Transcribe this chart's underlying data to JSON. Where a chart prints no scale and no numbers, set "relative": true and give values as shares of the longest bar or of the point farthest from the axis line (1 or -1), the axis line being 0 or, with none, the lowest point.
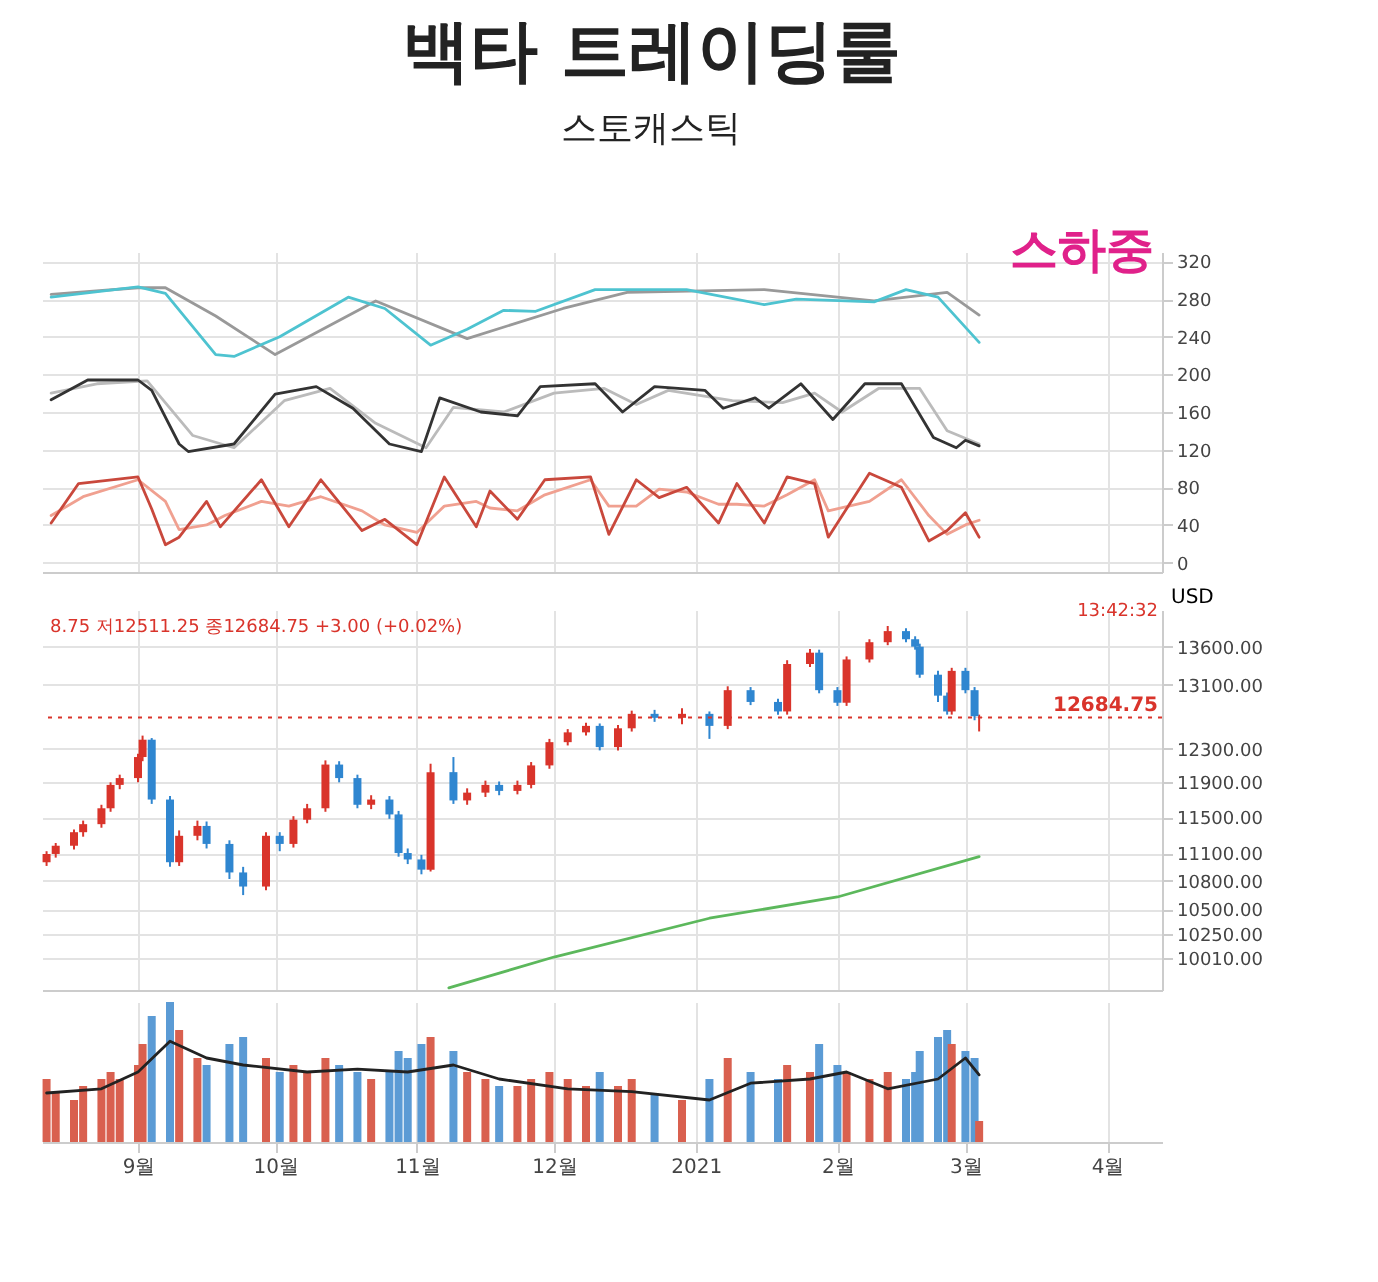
{
  "chart_data": [
    {
      "type": "line",
      "title": "백타 트레이딩룰",
      "subtitle": "스토캐스틱",
      "xlim": [
        "2020-08-11",
        "2021-04-13"
      ],
      "xticks": [
        {
          "value": "2020-09-01",
          "label": null
        },
        {
          "value": "2020-10-01",
          "label": null
        },
        {
          "value": "2020-11-01",
          "label": null
        },
        {
          "value": "2020-12-01",
          "label": null
        },
        {
          "value": "2021-01-01",
          "label": null
        },
        {
          "value": "2021-02-01",
          "label": null
        },
        {
          "value": "2021-03-01",
          "label": null
        },
        {
          "value": "2021-04-01",
          "label": null
        }
      ],
      "ylim": [
        -10,
        330
      ],
      "yticks": [
        0,
        40,
        80,
        120,
        160,
        200,
        240,
        280,
        320
      ],
      "tick_labels": "y",
      "grid": true,
      "annotations": [
        "스하중"
      ],
      "series": [
        {
          "color": "#999999",
          "x": [
            "2020-08-13",
            "2020-09-01",
            "2020-09-07",
            "2020-09-18",
            "2020-10-01",
            "2020-10-23",
            "2020-11-12",
            "2020-12-03",
            "2020-12-17",
            "2021-01-16",
            "2021-02-09",
            "2021-02-25",
            "2021-03-04"
          ],
          "values": [
            285,
            292,
            292,
            262,
            221,
            278,
            238,
            270,
            287,
            290,
            278,
            287,
            263
          ]
        },
        {
          "color": "#4ec3d0",
          "x": [
            "2020-08-13",
            "2020-09-01",
            "2020-09-07",
            "2020-09-18",
            "2020-09-22",
            "2020-10-02",
            "2020-10-17",
            "2020-10-25",
            "2020-11-04",
            "2020-11-12",
            "2020-11-20",
            "2020-11-27",
            "2020-12-10",
            "2020-12-30",
            "2021-01-16",
            "2021-01-23",
            "2021-02-09",
            "2021-02-16",
            "2021-02-23",
            "2021-03-04"
          ],
          "values": [
            282,
            293,
            286,
            221,
            219,
            240,
            282,
            270,
            231,
            248,
            268,
            267,
            290,
            290,
            274,
            280,
            277,
            290,
            282,
            234
          ]
        },
        {
          "color": "#bbbbbb",
          "x": [
            "2020-08-13",
            "2020-08-23",
            "2020-09-03",
            "2020-09-13",
            "2020-09-22",
            "2020-10-03",
            "2020-10-13",
            "2020-10-23",
            "2020-11-03",
            "2020-11-09",
            "2020-11-20",
            "2020-12-01",
            "2020-12-12",
            "2020-12-19",
            "2020-12-26",
            "2021-01-09",
            "2021-01-20",
            "2021-01-27",
            "2021-02-02",
            "2021-02-10",
            "2021-02-19",
            "2021-02-25",
            "2021-03-04"
          ],
          "values": [
            180,
            190,
            193,
            135,
            122,
            172,
            185,
            148,
            122,
            165,
            160,
            180,
            185,
            168,
            183,
            172,
            170,
            180,
            160,
            185,
            185,
            140,
            126
          ]
        },
        {
          "color": "#333333",
          "x": [
            "2020-08-13",
            "2020-08-21",
            "2020-09-01",
            "2020-09-04",
            "2020-09-10",
            "2020-09-12",
            "2020-09-22",
            "2020-10-01",
            "2020-10-10",
            "2020-10-18",
            "2020-10-26",
            "2020-11-02",
            "2020-11-06",
            "2020-11-15",
            "2020-11-23",
            "2020-11-28",
            "2020-12-10",
            "2020-12-16",
            "2020-12-23",
            "2021-01-03",
            "2021-01-07",
            "2021-01-14",
            "2021-01-17",
            "2021-01-24",
            "2021-01-31",
            "2021-02-07",
            "2021-02-15",
            "2021-02-22",
            "2021-02-27",
            "2021-03-01",
            "2021-03-04"
          ],
          "values": [
            173,
            194,
            194,
            183,
            126,
            118,
            126,
            179,
            187,
            164,
            126,
            118,
            175,
            160,
            156,
            187,
            190,
            160,
            187,
            183,
            164,
            175,
            164,
            190,
            152,
            190,
            190,
            133,
            122,
            130,
            124
          ]
        },
        {
          "color": "#f0a090",
          "x": [
            "2020-08-13",
            "2020-08-20",
            "2020-09-01",
            "2020-09-07",
            "2020-09-10",
            "2020-09-16",
            "2020-09-20",
            "2020-09-28",
            "2020-10-04",
            "2020-10-11",
            "2020-10-20",
            "2020-10-25",
            "2020-11-01",
            "2020-11-07",
            "2020-11-14",
            "2020-11-17",
            "2020-11-23",
            "2020-11-29",
            "2020-12-09",
            "2020-12-13",
            "2020-12-19",
            "2020-12-24",
            "2020-12-30",
            "2021-01-06",
            "2021-01-10",
            "2021-01-16",
            "2021-01-21",
            "2021-01-27",
            "2021-01-30",
            "2021-02-08",
            "2021-02-15",
            "2021-02-21",
            "2021-02-25",
            "2021-03-01",
            "2021-03-04"
          ],
          "values": [
            50,
            70,
            88,
            65,
            35,
            40,
            50,
            65,
            60,
            70,
            55,
            40,
            32,
            60,
            65,
            58,
            55,
            72,
            88,
            60,
            60,
            78,
            75,
            62,
            62,
            60,
            72,
            88,
            55,
            65,
            88,
            50,
            30,
            40,
            45
          ]
        },
        {
          "color": "#c9483c",
          "x": [
            "2020-08-13",
            "2020-08-19",
            "2020-09-01",
            "2020-09-04",
            "2020-09-07",
            "2020-09-10",
            "2020-09-16",
            "2020-09-19",
            "2020-09-28",
            "2020-10-04",
            "2020-10-11",
            "2020-10-20",
            "2020-10-25",
            "2020-11-01",
            "2020-11-07",
            "2020-11-14",
            "2020-11-17",
            "2020-11-23",
            "2020-11-29",
            "2020-12-09",
            "2020-12-13",
            "2020-12-19",
            "2020-12-24",
            "2020-12-30",
            "2021-01-06",
            "2021-01-10",
            "2021-01-16",
            "2021-01-21",
            "2021-01-27",
            "2021-01-30",
            "2021-02-08",
            "2021-02-15",
            "2021-02-21",
            "2021-02-25",
            "2021-03-01",
            "2021-03-04"
          ],
          "values": [
            42,
            84,
            91,
            57,
            19,
            27,
            65,
            38,
            88,
            38,
            88,
            34,
            46,
            19,
            91,
            38,
            76,
            46,
            88,
            91,
            30,
            88,
            69,
            80,
            42,
            84,
            42,
            91,
            84,
            27,
            95,
            80,
            23,
            34,
            53,
            27
          ]
        }
      ]
    },
    {
      "type": "candlestick",
      "ylabel": "USD",
      "log": true,
      "xlim": [
        "2020-08-11",
        "2021-04-13"
      ],
      "xticks": [
        {
          "value": "2020-09-01",
          "label": null
        },
        {
          "value": "2020-10-01",
          "label": null
        },
        {
          "value": "2020-11-01",
          "label": null
        },
        {
          "value": "2020-12-01",
          "label": null
        },
        {
          "value": "2021-01-01",
          "label": null
        },
        {
          "value": "2021-02-01",
          "label": null
        },
        {
          "value": "2021-03-01",
          "label": null
        },
        {
          "value": "2021-04-01",
          "label": null
        }
      ],
      "ylim": [
        9700,
        14100
      ],
      "yticks": [
        {
          "value": 10010,
          "label": "10010.00"
        },
        {
          "value": 10250,
          "label": "10250.00"
        },
        {
          "value": 10500,
          "label": "10500.00"
        },
        {
          "value": 10800,
          "label": "10800.00"
        },
        {
          "value": 11100,
          "label": "11100.00"
        },
        {
          "value": 11500,
          "label": "11500.00"
        },
        {
          "value": 11900,
          "label": "11900.00"
        },
        {
          "value": 12300,
          "label": "12300.00"
        },
        {
          "value": 13100,
          "label": "13100.00"
        },
        {
          "value": 13600,
          "label": "13600.00"
        }
      ],
      "tick_labels": "y",
      "grid": true,
      "annotations": [
        "8.75 저12511.25 종12684.75 +3.00 (+0.02%)",
        "13:42:32"
      ],
      "ref_lines": [
        {
          "axis": "y",
          "value": 12684.75,
          "label": "12684.75",
          "color": "#d9342b",
          "line_style": "dotted"
        }
      ],
      "x": [
        "2020-08-12",
        "2020-08-14",
        "2020-08-18",
        "2020-08-20",
        "2020-08-24",
        "2020-08-26",
        "2020-08-28",
        "2020-09-01",
        "2020-09-02",
        "2020-09-04",
        "2020-09-08",
        "2020-09-10",
        "2020-09-14",
        "2020-09-16",
        "2020-09-21",
        "2020-09-24",
        "2020-09-29",
        "2020-10-02",
        "2020-10-05",
        "2020-10-08",
        "2020-10-12",
        "2020-10-15",
        "2020-10-19",
        "2020-10-22",
        "2020-10-26",
        "2020-10-28",
        "2020-10-30",
        "2020-11-02",
        "2020-11-04",
        "2020-11-09",
        "2020-11-12",
        "2020-11-16",
        "2020-11-19",
        "2020-11-23",
        "2020-11-26",
        "2020-11-30",
        "2020-12-04",
        "2020-12-08",
        "2020-12-11",
        "2020-12-15",
        "2020-12-18",
        "2020-12-23",
        "2020-12-29",
        "2021-01-04",
        "2021-01-08",
        "2021-01-13",
        "2021-01-19",
        "2021-01-21",
        "2021-01-26",
        "2021-01-28",
        "2021-02-01",
        "2021-02-03",
        "2021-02-08",
        "2021-02-12",
        "2021-02-16",
        "2021-02-18",
        "2021-02-19",
        "2021-02-23",
        "2021-02-25",
        "2021-02-26",
        "2021-03-01",
        "2021-03-03",
        "2021-03-04"
      ],
      "ohlc": [
        [
          11000,
          11120,
          10960,
          11090
        ],
        [
          11090,
          11210,
          11050,
          11180
        ],
        [
          11180,
          11360,
          11140,
          11330
        ],
        [
          11330,
          11460,
          11280,
          11420
        ],
        [
          11420,
          11640,
          11380,
          11600
        ],
        [
          11600,
          11900,
          11560,
          11870
        ],
        [
          11870,
          11990,
          11820,
          11950
        ],
        [
          11950,
          12240,
          11900,
          12200
        ],
        [
          12200,
          12460,
          12150,
          12410
        ],
        [
          12410,
          12430,
          11650,
          11700
        ],
        [
          11700,
          11740,
          10950,
          11000
        ],
        [
          11000,
          11350,
          10960,
          11290
        ],
        [
          11290,
          11460,
          11240,
          11400
        ],
        [
          11400,
          11450,
          11150,
          11200
        ],
        [
          11200,
          11240,
          10820,
          10890
        ],
        [
          10890,
          10950,
          10650,
          10740
        ],
        [
          10740,
          11330,
          10700,
          11290
        ],
        [
          11290,
          11330,
          11120,
          11200
        ],
        [
          11200,
          11510,
          11160,
          11470
        ],
        [
          11470,
          11650,
          11430,
          11600
        ],
        [
          11600,
          12160,
          11560,
          12110
        ],
        [
          12110,
          12150,
          11900,
          11950
        ],
        [
          11950,
          11990,
          11600,
          11640
        ],
        [
          11640,
          11750,
          11590,
          11700
        ],
        [
          11700,
          11740,
          11480,
          11530
        ],
        [
          11530,
          11570,
          11060,
          11100
        ],
        [
          11100,
          11150,
          10980,
          11030
        ],
        [
          11030,
          11080,
          10870,
          10920
        ],
        [
          10920,
          12120,
          10900,
          12020
        ],
        [
          12020,
          12200,
          11650,
          11690
        ],
        [
          11690,
          11830,
          11640,
          11780
        ],
        [
          11780,
          11920,
          11730,
          11870
        ],
        [
          11870,
          11910,
          11750,
          11800
        ],
        [
          11800,
          11920,
          11760,
          11870
        ],
        [
          11870,
          12140,
          11830,
          12100
        ],
        [
          12100,
          12420,
          12060,
          12380
        ],
        [
          12380,
          12540,
          12340,
          12500
        ],
        [
          12500,
          12620,
          12460,
          12580
        ],
        [
          12580,
          12610,
          12280,
          12320
        ],
        [
          12320,
          12590,
          12280,
          12550
        ],
        [
          12550,
          12770,
          12510,
          12730
        ],
        [
          12730,
          12780,
          12630,
          12680
        ],
        [
          12680,
          12800,
          12600,
          12730
        ],
        [
          12730,
          12760,
          12420,
          12580
        ],
        [
          12580,
          13080,
          12540,
          13030
        ],
        [
          13030,
          13070,
          12840,
          12880
        ],
        [
          12880,
          12920,
          12720,
          12760
        ],
        [
          12760,
          13420,
          12720,
          13370
        ],
        [
          13370,
          13570,
          13330,
          13520
        ],
        [
          13520,
          13560,
          12990,
          13030
        ],
        [
          13030,
          13070,
          12830,
          12870
        ],
        [
          12870,
          13470,
          12830,
          13430
        ],
        [
          13430,
          13700,
          13390,
          13660
        ],
        [
          13660,
          13880,
          13620,
          13810
        ],
        [
          13810,
          13850,
          13660,
          13700
        ],
        [
          13700,
          13740,
          13560,
          13600
        ],
        [
          13600,
          13640,
          13190,
          13230
        ],
        [
          13230,
          13280,
          12880,
          12960
        ],
        [
          12960,
          13000,
          12720,
          12760
        ],
        [
          12760,
          13320,
          12720,
          13280
        ],
        [
          13280,
          13320,
          12990,
          13030
        ],
        [
          13030,
          13070,
          12650,
          12700
        ],
        [
          12681.75,
          12720,
          12511.25,
          12684.75
        ]
      ],
      "series": [
        {
          "type": "line",
          "color": "#5cb85c",
          "x": [
            "2020-11-08",
            "2020-12-01",
            "2021-01-04",
            "2021-02-01",
            "2021-03-04"
          ],
          "values": [
            9720,
            10020,
            10410,
            10630,
            11060
          ]
        }
      ]
    },
    {
      "type": "bar",
      "relative": true,
      "xlim": [
        "2020-08-11",
        "2021-04-13"
      ],
      "xticks": [
        {
          "value": "2020-09-01",
          "label": "9월"
        },
        {
          "value": "2020-10-01",
          "label": "10월"
        },
        {
          "value": "2020-11-01",
          "label": "11월"
        },
        {
          "value": "2020-12-01",
          "label": "12월"
        },
        {
          "value": "2021-01-01",
          "label": "2021"
        },
        {
          "value": "2021-02-01",
          "label": "2월"
        },
        {
          "value": "2021-03-01",
          "label": "3월"
        },
        {
          "value": "2021-04-01",
          "label": "4월"
        }
      ],
      "tick_labels": "x",
      "grid": "x",
      "series": [
        {
          "type": "bar",
          "x": [
            "2020-08-12",
            "2020-08-14",
            "2020-08-18",
            "2020-08-20",
            "2020-08-24",
            "2020-08-26",
            "2020-08-28",
            "2020-09-01",
            "2020-09-02",
            "2020-09-04",
            "2020-09-08",
            "2020-09-10",
            "2020-09-14",
            "2020-09-16",
            "2020-09-21",
            "2020-09-24",
            "2020-09-29",
            "2020-10-02",
            "2020-10-05",
            "2020-10-08",
            "2020-10-12",
            "2020-10-15",
            "2020-10-19",
            "2020-10-22",
            "2020-10-26",
            "2020-10-28",
            "2020-10-30",
            "2020-11-02",
            "2020-11-04",
            "2020-11-09",
            "2020-11-12",
            "2020-11-16",
            "2020-11-19",
            "2020-11-23",
            "2020-11-26",
            "2020-11-30",
            "2020-12-04",
            "2020-12-08",
            "2020-12-11",
            "2020-12-15",
            "2020-12-18",
            "2020-12-23",
            "2020-12-29",
            "2021-01-04",
            "2021-01-08",
            "2021-01-13",
            "2021-01-19",
            "2021-01-21",
            "2021-01-26",
            "2021-01-28",
            "2021-02-01",
            "2021-02-03",
            "2021-02-08",
            "2021-02-12",
            "2021-02-16",
            "2021-02-18",
            "2021-02-19",
            "2021-02-23",
            "2021-02-25",
            "2021-02-26",
            "2021-03-01",
            "2021-03-03",
            "2021-03-04"
          ],
          "values": [
            0.45,
            0.35,
            0.3,
            0.4,
            0.45,
            0.5,
            0.45,
            0.55,
            0.7,
            0.9,
            1.0,
            0.8,
            0.6,
            0.55,
            0.7,
            0.75,
            0.6,
            0.5,
            0.55,
            0.5,
            0.6,
            0.55,
            0.5,
            0.45,
            0.5,
            0.65,
            0.6,
            0.7,
            0.75,
            0.65,
            0.5,
            0.45,
            0.4,
            0.4,
            0.45,
            0.5,
            0.45,
            0.4,
            0.5,
            0.4,
            0.45,
            0.35,
            0.3,
            0.45,
            0.6,
            0.5,
            0.45,
            0.55,
            0.5,
            0.7,
            0.55,
            0.5,
            0.45,
            0.5,
            0.45,
            0.5,
            0.65,
            0.75,
            0.8,
            0.7,
            0.65,
            0.6,
            0.15
          ],
          "colors": [
            "#d9604f",
            "#d9604f",
            "#d9604f",
            "#d9604f",
            "#d9604f",
            "#d9604f",
            "#d9604f",
            "#d9604f",
            "#d9604f",
            "#5b9bd5",
            "#5b9bd5",
            "#d9604f",
            "#d9604f",
            "#5b9bd5",
            "#5b9bd5",
            "#5b9bd5",
            "#d9604f",
            "#5b9bd5",
            "#d9604f",
            "#d9604f",
            "#d9604f",
            "#5b9bd5",
            "#5b9bd5",
            "#d9604f",
            "#5b9bd5",
            "#5b9bd5",
            "#5b9bd5",
            "#5b9bd5",
            "#d9604f",
            "#5b9bd5",
            "#d9604f",
            "#d9604f",
            "#5b9bd5",
            "#d9604f",
            "#d9604f",
            "#d9604f",
            "#d9604f",
            "#d9604f",
            "#5b9bd5",
            "#d9604f",
            "#d9604f",
            "#5b9bd5",
            "#d9604f",
            "#5b9bd5",
            "#d9604f",
            "#5b9bd5",
            "#5b9bd5",
            "#d9604f",
            "#d9604f",
            "#5b9bd5",
            "#5b9bd5",
            "#d9604f",
            "#d9604f",
            "#d9604f",
            "#5b9bd5",
            "#5b9bd5",
            "#5b9bd5",
            "#5b9bd5",
            "#5b9bd5",
            "#d9604f",
            "#5b9bd5",
            "#5b9bd5",
            "#d9604f"
          ]
        },
        {
          "type": "line",
          "color": "#222222",
          "x": [
            "2020-08-12",
            "2020-08-24",
            "2020-09-01",
            "2020-09-08",
            "2020-09-16",
            "2020-09-24",
            "2020-10-08",
            "2020-10-19",
            "2020-10-30",
            "2020-11-09",
            "2020-11-19",
            "2020-12-04",
            "2020-12-18",
            "2021-01-04",
            "2021-01-13",
            "2021-01-26",
            "2021-02-03",
            "2021-02-12",
            "2021-02-23",
            "2021-03-01",
            "2021-03-04"
          ],
          "values": [
            0.35,
            0.38,
            0.5,
            0.72,
            0.6,
            0.55,
            0.5,
            0.52,
            0.5,
            0.55,
            0.45,
            0.38,
            0.36,
            0.3,
            0.42,
            0.45,
            0.5,
            0.38,
            0.45,
            0.6,
            0.48
          ]
        }
      ]
    }
  ]
}
